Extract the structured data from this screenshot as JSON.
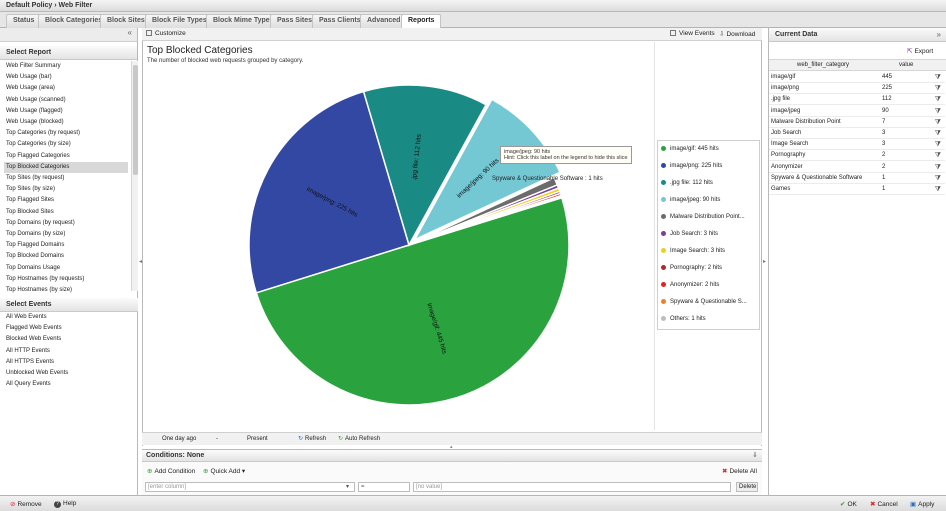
{
  "window": {
    "title": "Default Policy › Web Filter"
  },
  "tabs": [
    {
      "label": "Status"
    },
    {
      "label": "Block Categories"
    },
    {
      "label": "Block Sites"
    },
    {
      "label": "Block File Types"
    },
    {
      "label": "Block Mime Types"
    },
    {
      "label": "Pass Sites"
    },
    {
      "label": "Pass Clients"
    },
    {
      "label": "Advanced"
    },
    {
      "label": "Reports"
    }
  ],
  "left": {
    "select_report_title": "Select Report",
    "reports": [
      "Web Filter Summary",
      "Web Usage (bar)",
      "Web Usage (area)",
      "Web Usage (scanned)",
      "Web Usage (flagged)",
      "Web Usage (blocked)",
      "Top Categories (by request)",
      "Top Categories (by size)",
      "Top Flagged Categories",
      "Top Blocked Categories",
      "Top Sites (by request)",
      "Top Sites (by size)",
      "Top Flagged Sites",
      "Top Blocked Sites",
      "Top Domains (by request)",
      "Top Domains (by size)",
      "Top Flagged Domains",
      "Top Blocked Domains",
      "Top Domains Usage",
      "Top Hostnames (by requests)",
      "Top Hostnames (by size)"
    ],
    "select_events_title": "Select Events",
    "events": [
      "All Web Events",
      "Flagged Web Events",
      "Blocked Web Events",
      "All HTTP Events",
      "All HTTPS Events",
      "Unblocked Web Events",
      "All Query Events"
    ]
  },
  "center": {
    "customize_label": "Customize",
    "view_events_label": "View Events",
    "download_label": "Download",
    "report_title": "Top Blocked Categories",
    "report_subtitle": "The number of blocked web requests grouped by category.",
    "tooltip_line1": "image/jpeg: 90 hits",
    "tooltip_line2": "Hint: Click this label on the legend to hide this slice",
    "slice_labels": {
      "gif": "image/gif: 445 hits",
      "png": "image/png: 225 hits",
      "jpgfile": ".jpg file: 112 hits",
      "jpeg": "image/jpeg: 90 hits",
      "spyware": "Spyware & Questionable Software : 1 hits"
    },
    "range_start": "One day ago",
    "range_sep": "-",
    "range_end": "Present",
    "refresh_label": "Refresh",
    "auto_refresh_label": "Auto Refresh",
    "conditions_title": "Conditions: None",
    "add_condition_label": "Add Condition",
    "quick_add_label": "Quick Add",
    "delete_all_label": "Delete All",
    "column_placeholder": "[enter column]",
    "op_value": "=",
    "value_placeholder": "[no value]",
    "delete_label": "Delete"
  },
  "legend": [
    {
      "label": "image/gif: 445 hits",
      "color": "#2aa33f"
    },
    {
      "label": "image/png: 225 hits",
      "color": "#3348a2"
    },
    {
      "label": ".jpg file: 112 hits",
      "color": "#1a8a85"
    },
    {
      "label": "image/jpeg: 90 hits",
      "color": "#74c8d4"
    },
    {
      "label": "Malware Distribution Point...",
      "color": "#6b6b6b"
    },
    {
      "label": "Job Search: 3 hits",
      "color": "#7a3f96"
    },
    {
      "label": "Image Search: 3 hits",
      "color": "#e9d21d"
    },
    {
      "label": "Pornography: 2 hits",
      "color": "#b5292b"
    },
    {
      "label": "Anonymizer: 2 hits",
      "color": "#e0231f"
    },
    {
      "label": "Spyware & Questionable S...",
      "color": "#f07f2a"
    },
    {
      "label": "Others: 1 hits",
      "color": "#bdbdbd"
    }
  ],
  "chart_data": {
    "type": "pie",
    "title": "Top Blocked Categories",
    "subtitle": "The number of blocked web requests grouped by category.",
    "categories": [
      "image/gif",
      "image/png",
      ".jpg file",
      "image/jpeg",
      "Malware Distribution Point",
      "Job Search",
      "Image Search",
      "Pornography",
      "Anonymizer",
      "Spyware & Questionable Software",
      "Others"
    ],
    "values": [
      445,
      225,
      112,
      90,
      7,
      3,
      3,
      2,
      2,
      1,
      1
    ],
    "colors": [
      "#2aa33f",
      "#3348a2",
      "#1a8a85",
      "#74c8d4",
      "#6b6b6b",
      "#7a3f96",
      "#e9d21d",
      "#b5292b",
      "#e0231f",
      "#f07f2a",
      "#bdbdbd"
    ],
    "legend_position": "right"
  },
  "right": {
    "title": "Current Data",
    "export_label": "Export",
    "col_category": "web_filter_category",
    "col_value": "value",
    "rows": [
      {
        "category": "image/gif",
        "value": "445"
      },
      {
        "category": "image/png",
        "value": "225"
      },
      {
        "category": ".jpg file",
        "value": "112"
      },
      {
        "category": "image/jpeg",
        "value": "90"
      },
      {
        "category": "Malware Distribution Point",
        "value": "7"
      },
      {
        "category": "Job Search",
        "value": "3"
      },
      {
        "category": "Image Search",
        "value": "3"
      },
      {
        "category": "Pornography",
        "value": "2"
      },
      {
        "category": "Anonymizer",
        "value": "2"
      },
      {
        "category": "Spyware & Questionable Software",
        "value": "1"
      },
      {
        "category": "Games",
        "value": "1"
      }
    ]
  },
  "footer": {
    "remove_label": "Remove",
    "help_label": "Help",
    "ok_label": "OK",
    "cancel_label": "Cancel",
    "apply_label": "Apply"
  }
}
